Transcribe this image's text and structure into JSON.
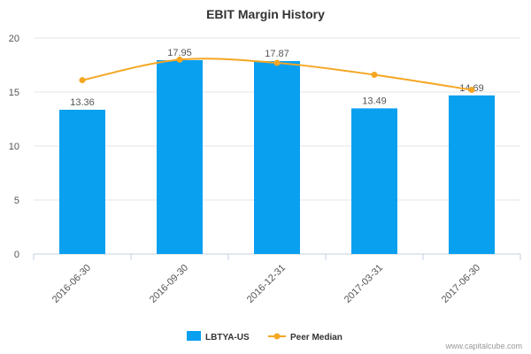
{
  "chart_data": {
    "type": "bar",
    "title": "EBIT Margin History",
    "xlabel": "",
    "ylabel": "",
    "ylim": [
      0,
      20
    ],
    "yticks": [
      0,
      5,
      10,
      15,
      20
    ],
    "categories": [
      "2016-06-30",
      "2016-09-30",
      "2016-12-31",
      "2017-03-31",
      "2017-06-30"
    ],
    "series": [
      {
        "name": "LBTYA-US",
        "kind": "bar",
        "color": "#0aa0f0",
        "values": [
          13.36,
          17.95,
          17.87,
          13.49,
          14.69
        ],
        "labels": [
          "13.36",
          "17.95",
          "17.87",
          "13.49",
          "14.69"
        ]
      },
      {
        "name": "Peer Median",
        "kind": "line",
        "color": "#f5a623",
        "values": [
          16.1,
          18.0,
          17.7,
          16.6,
          15.2
        ]
      }
    ],
    "legend_position": "bottom-center"
  },
  "credit": "www.capitalcube.com"
}
